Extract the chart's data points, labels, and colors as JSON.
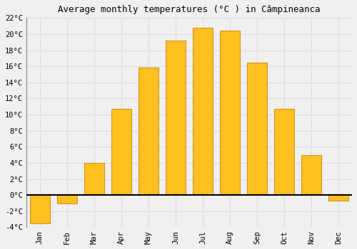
{
  "title": "Average monthly temperatures (°C ) in Câmpineanca",
  "months": [
    "Jan",
    "Feb",
    "Mar",
    "Apr",
    "May",
    "Jun",
    "Jul",
    "Aug",
    "Sep",
    "Oct",
    "Nov",
    "Dec"
  ],
  "values": [
    -3.5,
    -1.0,
    4.0,
    10.7,
    15.8,
    19.2,
    20.8,
    20.4,
    16.5,
    10.7,
    5.0,
    -0.7
  ],
  "bar_color": "#FFC020",
  "bar_edge_color": "#D08000",
  "background_color": "#F0F0F0",
  "grid_color": "#DDDDDD",
  "ylim": [
    -4,
    22
  ],
  "yticks": [
    -4,
    -2,
    0,
    2,
    4,
    6,
    8,
    10,
    12,
    14,
    16,
    18,
    20,
    22
  ],
  "ytick_labels": [
    "-4°C",
    "-2°C",
    "0°C",
    "2°C",
    "4°C",
    "6°C",
    "8°C",
    "10°C",
    "12°C",
    "14°C",
    "16°C",
    "18°C",
    "20°C",
    "22°C"
  ],
  "title_fontsize": 9,
  "tick_fontsize": 7.5,
  "bar_width": 0.75
}
